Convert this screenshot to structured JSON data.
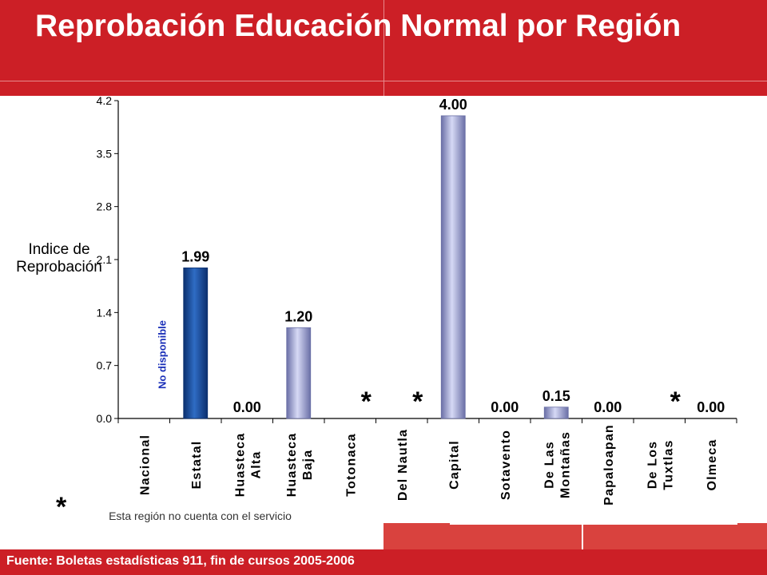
{
  "title": "Reprobación Educación Normal por Región",
  "footer": "Fuente: Boletas estadísticas 911, fin de cursos 2005-2006",
  "note": {
    "symbol": "*",
    "text": "Esta región no cuenta con el servicio"
  },
  "colors": {
    "header": "#cc1f26",
    "estatal_bar": "#1c4f9c",
    "region_bar": "#a9aede",
    "no_disponible": "#1a2fb8"
  },
  "chart_data": {
    "type": "bar",
    "ylabel": "Indice de Reprobación",
    "ylim": [
      0,
      4.2
    ],
    "yticks": [
      "0.0",
      "0.7",
      "1.4",
      "2.1",
      "2.8",
      "3.5",
      "4.2"
    ],
    "categories": [
      "Nacional",
      "Estatal",
      "Huasteca Alta",
      "Huasteca Baja",
      "Totonaca",
      "Del Nautla",
      "Capital",
      "Sotavento",
      "De Las Montañas",
      "Papaloapan",
      "De Los Tuxtlas",
      "Olmeca"
    ],
    "values": [
      null,
      1.99,
      0.0,
      1.2,
      null,
      null,
      4.0,
      0.0,
      0.15,
      0.0,
      null,
      0.0
    ],
    "value_labels": [
      "",
      "1.99",
      "0.00",
      "1.20",
      "",
      "",
      "4.00",
      "0.00",
      "0.15",
      "0.00",
      "",
      "0.00"
    ],
    "markers": [
      "No disponible",
      "",
      "",
      "",
      "*",
      "*",
      "",
      "",
      "",
      "",
      "*",
      ""
    ],
    "grid": false,
    "legend": "none"
  }
}
